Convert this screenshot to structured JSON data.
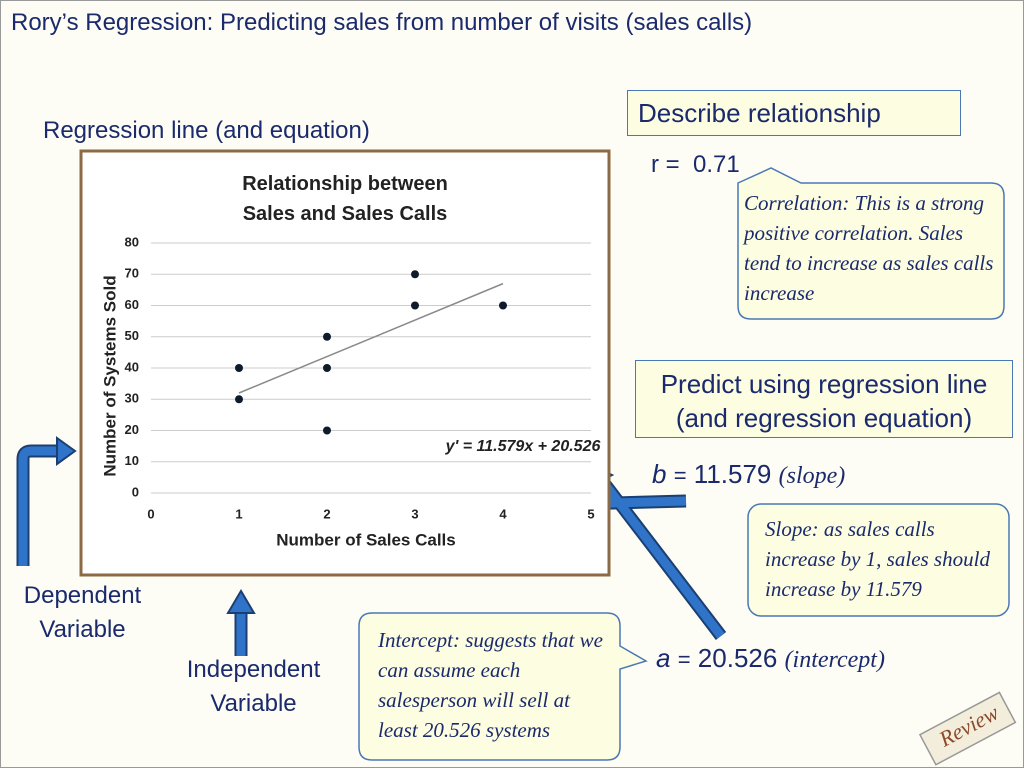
{
  "title": "Rory’s Regression: Predicting sales from number of visits (sales calls)",
  "left_heading": "Regression line (and equation)",
  "describe_box": "Describe relationship",
  "r": {
    "symbol": "r",
    "sign": "=",
    "value": 0.71
  },
  "correlation_note": "Correlation: This is a strong positive correlation.  Sales tend to increase as sales calls increase",
  "predict_box": "Predict using regression line (and regression equation)",
  "b": {
    "symbol": "b",
    "sign": "=",
    "value": 11.579,
    "note": "(slope)"
  },
  "slope_note": "Slope: as sales calls increase by 1, sales should increase by 11.579",
  "a": {
    "symbol": "a",
    "sign": "=",
    "value": 20.526,
    "note": "(intercept)"
  },
  "intercept_note": "Intercept: suggests that we can assume each salesperson will sell at least 20.526 systems",
  "dependent_label": "Dependent Variable",
  "independent_label": "Independent Variable",
  "stamp": "Review",
  "chart_data": {
    "type": "scatter",
    "title": "Relationship between Sales and Sales Calls",
    "x_label": "Number of Sales Calls",
    "y_label": "Number of Systems Sold",
    "annotation": "y' = 11.579x + 20.526",
    "series": [
      {
        "name": "Sales",
        "color": "#0d1b2a",
        "x": [
          1,
          1,
          2,
          2,
          2,
          3,
          3,
          4
        ],
        "values": [
          40,
          30,
          50,
          40,
          20,
          70,
          60,
          60
        ]
      }
    ],
    "trendline": {
      "color": "#8a8a8a",
      "x": [
        1,
        4
      ],
      "values": [
        32,
        67
      ]
    },
    "xlim": [
      0,
      5
    ],
    "xticks": [
      0,
      1,
      2,
      3,
      4,
      5
    ],
    "ylim": [
      0,
      80
    ],
    "yticks": [
      0,
      10,
      20,
      30,
      40,
      50,
      60,
      70,
      80
    ],
    "grid": true
  }
}
